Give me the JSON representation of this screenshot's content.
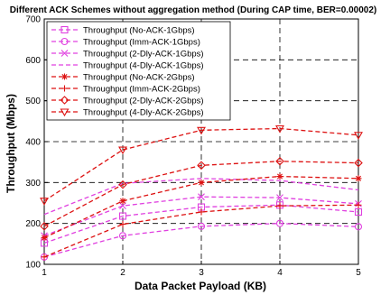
{
  "chart_data": {
    "type": "line",
    "title": "Different ACK Schemes without aggregation method (During CAP time, BER=0.00002)",
    "xlabel": "Data Packet Payload (KB)",
    "ylabel": "Throughput (Mbps)",
    "x": [
      1,
      2,
      3,
      4,
      5
    ],
    "xlim": [
      1,
      5
    ],
    "ylim": [
      100,
      700
    ],
    "xticks": [
      "1",
      "2",
      "3",
      "4",
      "5"
    ],
    "yticks": [
      "100",
      "200",
      "300",
      "400",
      "500",
      "600",
      "700"
    ],
    "grid": true,
    "legend_position": "top-left",
    "series": [
      {
        "name": "Throughput (No-ACK-1Gbps)",
        "values": [
          152,
          218,
          240,
          245,
          228
        ],
        "color": "#e040e0",
        "marker": "square",
        "dash": "dashed"
      },
      {
        "name": "Throughput (Imm-ACK-1Gbps)",
        "values": [
          118,
          170,
          193,
          200,
          192
        ],
        "color": "#e040e0",
        "marker": "circle",
        "dash": "dashed"
      },
      {
        "name": "Throughput (2-Dly-ACK-1Gbps)",
        "values": [
          170,
          243,
          265,
          263,
          248
        ],
        "color": "#e040e0",
        "marker": "x",
        "dash": "dashed"
      },
      {
        "name": "Throughput (4-Dly-ACK-1Gbps)",
        "values": [
          222,
          298,
          310,
          305,
          282
        ],
        "color": "#e040e0",
        "marker": "none",
        "dash": "dashed"
      },
      {
        "name": "Throughput (No-ACK-2Gbps)",
        "values": [
          165,
          255,
          300,
          315,
          310
        ],
        "color": "#dd1111",
        "marker": "star",
        "dash": "dashed"
      },
      {
        "name": "Throughput (Imm-ACK-2Gbps)",
        "values": [
          118,
          198,
          228,
          243,
          245
        ],
        "color": "#dd1111",
        "marker": "plus",
        "dash": "dashed"
      },
      {
        "name": "Throughput (2-Dly-ACK-2Gbps)",
        "values": [
          193,
          295,
          342,
          352,
          348
        ],
        "color": "#dd1111",
        "marker": "diamond",
        "dash": "dashed"
      },
      {
        "name": "Throughput (4-Dly-ACK-2Gbps)",
        "values": [
          255,
          380,
          428,
          432,
          416
        ],
        "color": "#dd1111",
        "marker": "triangle-down",
        "dash": "dashed"
      }
    ]
  }
}
